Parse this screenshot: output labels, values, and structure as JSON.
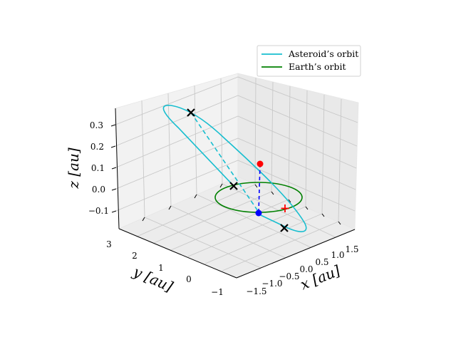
{
  "chart_data": {
    "type": "line",
    "projection": "3d",
    "grid": true,
    "legend_placement": "top-right",
    "axes": {
      "x": {
        "label": "x [au]",
        "ticks": [
          "−1.5",
          "−1.0",
          "−0.5",
          "0.0",
          "0.5",
          "1.0",
          "1.5"
        ]
      },
      "y": {
        "label": "y [au]",
        "ticks": [
          "−1",
          "0",
          "1",
          "2",
          "3"
        ]
      },
      "z": {
        "label": "z [au]",
        "ticks": [
          "−0.1",
          "0.0",
          "0.1",
          "0.2",
          "0.3"
        ]
      }
    },
    "series": [
      {
        "name": "Asteroid's orbit",
        "color": "#17becf",
        "style": "solid, dashed below ecliptic"
      },
      {
        "name": "Earth's orbit",
        "color": "#008000",
        "style": "solid"
      }
    ],
    "markers": [
      {
        "kind": "node",
        "symbol": "x",
        "color": "#000000"
      },
      {
        "kind": "node",
        "symbol": "x",
        "color": "#000000"
      },
      {
        "kind": "node",
        "symbol": "x",
        "color": "#000000"
      },
      {
        "kind": "asteroid-position",
        "symbol": "circle",
        "color": "#ff0000"
      },
      {
        "kind": "earth-position",
        "symbol": "circle",
        "color": "#0000ff"
      },
      {
        "kind": "sun",
        "symbol": "plus",
        "color": "#ff0000"
      }
    ],
    "legend": {
      "entries": [
        "Asteroid’s orbit",
        "Earth’s orbit"
      ]
    }
  }
}
